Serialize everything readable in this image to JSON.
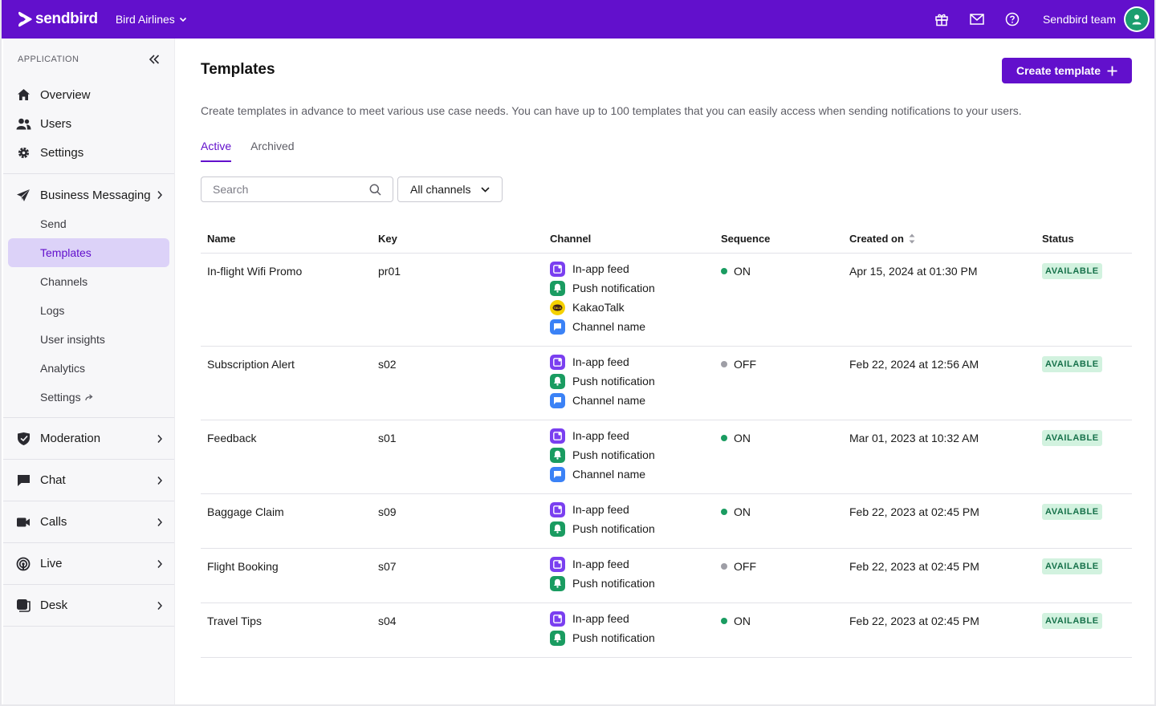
{
  "topbar": {
    "brand": "sendbird",
    "org": "Bird Airlines",
    "team": "Sendbird team",
    "colors": {
      "brand": "#6210cc",
      "avatar": "#1b9e6f"
    }
  },
  "sidebar": {
    "section_label": "APPLICATION",
    "items": [
      {
        "label": "Overview",
        "icon": "home-icon"
      },
      {
        "label": "Users",
        "icon": "users-icon"
      },
      {
        "label": "Settings",
        "icon": "gear-icon"
      }
    ],
    "business_messaging": {
      "label": "Business Messaging",
      "subitems": [
        "Send",
        "Templates",
        "Channels",
        "Logs",
        "User insights",
        "Analytics",
        "Settings"
      ],
      "active": "Templates"
    },
    "sections": [
      {
        "label": "Moderation",
        "icon": "shield-icon"
      },
      {
        "label": "Chat",
        "icon": "chat-icon"
      },
      {
        "label": "Calls",
        "icon": "video-icon"
      },
      {
        "label": "Live",
        "icon": "broadcast-icon"
      },
      {
        "label": "Desk",
        "icon": "desk-icon"
      }
    ]
  },
  "main": {
    "title": "Templates",
    "create_button": "Create template",
    "description": "Create templates in advance to meet various use case needs. You can have up to 100 templates that you can easily access when sending notifications to your users.",
    "tabs": [
      {
        "label": "Active",
        "active": true
      },
      {
        "label": "Archived",
        "active": false
      }
    ],
    "search_placeholder": "Search",
    "filter_label": "All channels",
    "columns": [
      "Name",
      "Key",
      "Channel",
      "Sequence",
      "Created on",
      "Status"
    ],
    "rows": [
      {
        "name": "In-flight Wifi Promo",
        "key": "pr01",
        "channels": [
          "In-app feed",
          "Push notification",
          "KakaoTalk",
          "Channel name"
        ],
        "sequence": "ON",
        "created": "Apr 15, 2024 at 01:30 PM",
        "status": "AVAILABLE"
      },
      {
        "name": "Subscription Alert",
        "key": "s02",
        "channels": [
          "In-app feed",
          "Push notification",
          "Channel name"
        ],
        "sequence": "OFF",
        "created": "Feb 22, 2024 at 12:56 AM",
        "status": "AVAILABLE"
      },
      {
        "name": "Feedback",
        "key": "s01",
        "channels": [
          "In-app feed",
          "Push notification",
          "Channel name"
        ],
        "sequence": "ON",
        "created": "Mar 01, 2023 at 10:32 AM",
        "status": "AVAILABLE"
      },
      {
        "name": "Baggage Claim",
        "key": "s09",
        "channels": [
          "In-app feed",
          "Push notification"
        ],
        "sequence": "ON",
        "created": "Feb 22, 2023 at 02:45 PM",
        "status": "AVAILABLE"
      },
      {
        "name": "Flight Booking",
        "key": "s07",
        "channels": [
          "In-app feed",
          "Push notification"
        ],
        "sequence": "OFF",
        "created": "Feb 22, 2023 at 02:45 PM",
        "status": "AVAILABLE"
      },
      {
        "name": "Travel Tips",
        "key": "s04",
        "channels": [
          "In-app feed",
          "Push notification"
        ],
        "sequence": "ON",
        "created": "Feb 22, 2023 at 02:45 PM",
        "status": "AVAILABLE"
      }
    ],
    "colors": {
      "on": "#1a9c61",
      "off": "#9e9ea6",
      "badge_bg": "#d2f2df",
      "badge_text": "#16714a"
    }
  }
}
